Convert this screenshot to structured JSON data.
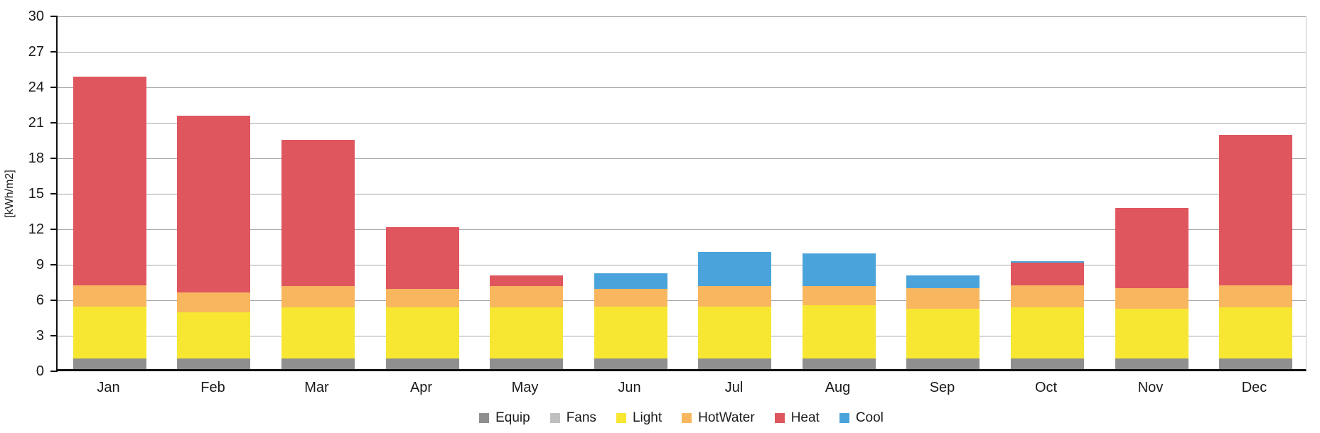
{
  "chart_data": {
    "type": "bar",
    "stacked": true,
    "title": "",
    "xlabel": "",
    "ylabel": "[kWh/m2]",
    "ylim": [
      0,
      30
    ],
    "ytick_step": 3,
    "ytick_labels": [
      "0",
      "3",
      "6",
      "9",
      "12",
      "15",
      "18",
      "21",
      "24",
      "27",
      "30"
    ],
    "grid": true,
    "legend_position": "bottom",
    "categories": [
      "Jan",
      "Feb",
      "Mar",
      "Apr",
      "May",
      "Jun",
      "Jul",
      "Aug",
      "Sep",
      "Oct",
      "Nov",
      "Dec"
    ],
    "series": [
      {
        "name": "Equip",
        "color": "#8f8f8f",
        "values": [
          0.9,
          0.9,
          0.9,
          0.9,
          0.9,
          0.9,
          0.9,
          0.9,
          0.9,
          0.9,
          0.9,
          0.9
        ]
      },
      {
        "name": "Fans",
        "color": "#bfbfbf",
        "values": [
          0,
          0,
          0,
          0,
          0,
          0,
          0,
          0,
          0,
          0,
          0,
          0
        ]
      },
      {
        "name": "Light",
        "color": "#f7e733",
        "values": [
          4.4,
          3.9,
          4.3,
          4.3,
          4.3,
          4.4,
          4.4,
          4.5,
          4.2,
          4.3,
          4.2,
          4.3
        ]
      },
      {
        "name": "HotWater",
        "color": "#f8b75f",
        "values": [
          1.8,
          1.7,
          1.8,
          1.6,
          1.8,
          1.5,
          1.7,
          1.6,
          1.75,
          1.9,
          1.75,
          1.9
        ]
      },
      {
        "name": "Heat",
        "color": "#e0565f",
        "values": [
          17.6,
          14.9,
          12.4,
          5.2,
          0.9,
          0,
          0,
          0,
          0,
          1.9,
          6.75,
          12.7
        ]
      },
      {
        "name": "Cool",
        "color": "#4aa4db",
        "values": [
          0,
          0,
          0,
          0,
          0,
          1.3,
          2.9,
          2.8,
          1.05,
          0.1,
          0,
          0
        ]
      }
    ],
    "totals": [
      24.7,
      21.4,
      19.4,
      12.0,
      7.9,
      8.1,
      9.9,
      9.8,
      7.9,
      9.1,
      13.6,
      19.8
    ]
  }
}
